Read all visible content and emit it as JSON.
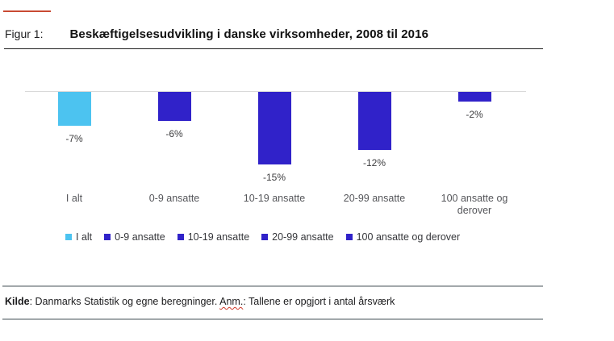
{
  "colors": {
    "accent_red": "#c94a33",
    "rule_dark": "#1f1f1f",
    "rule_gray": "#a2a8ab",
    "grid_gray": "#d9d9d9",
    "wavy_red": "#d03a2a",
    "bar_light_blue": "#4cc3f0",
    "bar_dark_blue": "#3022c9"
  },
  "header": {
    "figure_label": "Figur 1:",
    "title": "Beskæftigelsesudvikling i danske virksomheder, 2008 til 2016"
  },
  "chart_data": {
    "type": "bar",
    "title": "Beskæftigelsesudvikling i danske virksomheder, 2008 til 2016",
    "categories": [
      "I alt",
      "0-9 ansatte",
      "10-19 ansatte",
      "20-99 ansatte",
      "100 ansatte og derover"
    ],
    "values": [
      -7,
      -6,
      -15,
      -12,
      -2
    ],
    "data_labels": [
      "-7%",
      "-6%",
      "-15%",
      "-12%",
      "-2%"
    ],
    "bar_colors": [
      "#4cc3f0",
      "#3022c9",
      "#3022c9",
      "#3022c9",
      "#3022c9"
    ],
    "unit": "%",
    "xlabel": "",
    "ylabel": "",
    "ylim": [
      -16,
      0
    ],
    "grid": "zero baseline only",
    "legend_position": "bottom"
  },
  "legend": {
    "items": [
      {
        "label": "I alt",
        "color": "#4cc3f0"
      },
      {
        "label": "0-9 ansatte",
        "color": "#3022c9"
      },
      {
        "label": "10-19 ansatte",
        "color": "#3022c9"
      },
      {
        "label": "20-99 ansatte",
        "color": "#3022c9"
      },
      {
        "label": "100 ansatte og derover",
        "color": "#3022c9"
      }
    ]
  },
  "footer": {
    "source_label": "Kilde",
    "source_text": ": Danmarks Statistik og egne beregninger. ",
    "note_label": "Anm.",
    "note_text": ": Tallene er opgjort i antal årsværk"
  }
}
